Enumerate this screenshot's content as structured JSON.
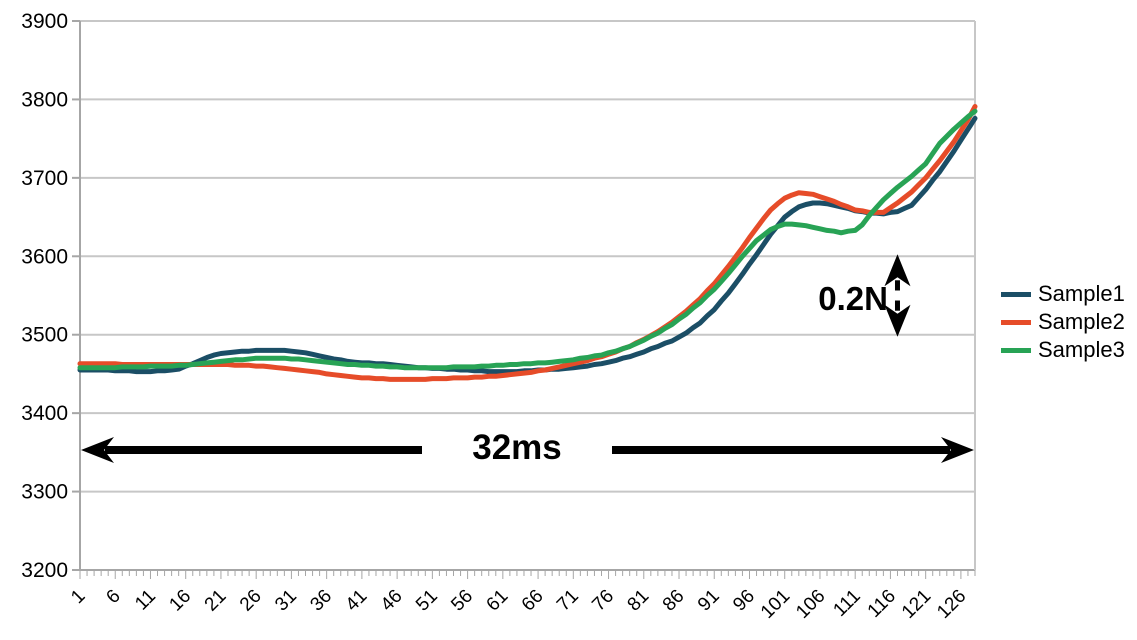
{
  "chart_data": {
    "type": "line",
    "title": "",
    "xlabel": "",
    "ylabel": "",
    "ylim": [
      3200,
      3900
    ],
    "y_ticks": [
      3200,
      3300,
      3400,
      3500,
      3600,
      3700,
      3800,
      3900
    ],
    "x_count": 128,
    "x_tick_labels": [
      "1",
      "6",
      "11",
      "16",
      "21",
      "26",
      "31",
      "36",
      "41",
      "46",
      "51",
      "56",
      "61",
      "66",
      "71",
      "76",
      "81",
      "86",
      "91",
      "96",
      "101",
      "106",
      "111",
      "116",
      "121",
      "126"
    ],
    "x_label_step": 5,
    "grid": "horizontal",
    "legend_position": "right",
    "colors": {
      "grid": "#c7c7c7",
      "axis": "#a6a6a6",
      "text": "#000000"
    },
    "series": [
      {
        "name": "Sample1",
        "color": "#1b4e66",
        "values": [
          3455,
          3455,
          3455,
          3455,
          3455,
          3454,
          3454,
          3454,
          3453,
          3453,
          3453,
          3454,
          3454,
          3455,
          3456,
          3460,
          3463,
          3467,
          3471,
          3474,
          3476,
          3477,
          3478,
          3479,
          3479,
          3480,
          3480,
          3480,
          3480,
          3480,
          3479,
          3478,
          3477,
          3475,
          3473,
          3471,
          3469,
          3468,
          3466,
          3465,
          3464,
          3464,
          3463,
          3463,
          3462,
          3461,
          3460,
          3459,
          3458,
          3458,
          3457,
          3457,
          3456,
          3456,
          3455,
          3455,
          3454,
          3454,
          3453,
          3453,
          3453,
          3453,
          3453,
          3454,
          3454,
          3455,
          3455,
          3456,
          3456,
          3457,
          3458,
          3459,
          3460,
          3462,
          3463,
          3465,
          3467,
          3470,
          3472,
          3475,
          3478,
          3482,
          3485,
          3489,
          3492,
          3497,
          3502,
          3509,
          3515,
          3524,
          3532,
          3543,
          3553,
          3565,
          3577,
          3590,
          3602,
          3615,
          3628,
          3639,
          3650,
          3657,
          3663,
          3666,
          3668,
          3668,
          3667,
          3665,
          3663,
          3661,
          3658,
          3657,
          3655,
          3655,
          3654,
          3656,
          3657,
          3661,
          3665,
          3675,
          3685,
          3697,
          3708,
          3721,
          3734,
          3748,
          3762,
          3776
        ]
      },
      {
        "name": "Sample2",
        "color": "#e64c29",
        "values": [
          3463,
          3463,
          3463,
          3463,
          3463,
          3463,
          3462,
          3462,
          3462,
          3462,
          3462,
          3462,
          3462,
          3462,
          3462,
          3462,
          3462,
          3462,
          3462,
          3462,
          3462,
          3462,
          3461,
          3461,
          3461,
          3460,
          3460,
          3459,
          3458,
          3457,
          3456,
          3455,
          3454,
          3453,
          3452,
          3450,
          3449,
          3448,
          3447,
          3446,
          3445,
          3445,
          3444,
          3444,
          3443,
          3443,
          3443,
          3443,
          3443,
          3443,
          3444,
          3444,
          3444,
          3445,
          3445,
          3445,
          3446,
          3446,
          3447,
          3447,
          3448,
          3449,
          3450,
          3451,
          3452,
          3454,
          3455,
          3457,
          3459,
          3461,
          3463,
          3465,
          3467,
          3470,
          3472,
          3475,
          3478,
          3482,
          3485,
          3490,
          3494,
          3499,
          3504,
          3510,
          3516,
          3523,
          3530,
          3538,
          3546,
          3556,
          3565,
          3576,
          3587,
          3599,
          3611,
          3624,
          3636,
          3648,
          3659,
          3667,
          3674,
          3678,
          3681,
          3680,
          3679,
          3676,
          3673,
          3670,
          3666,
          3663,
          3659,
          3658,
          3656,
          3656,
          3656,
          3662,
          3668,
          3675,
          3682,
          3691,
          3700,
          3711,
          3722,
          3734,
          3746,
          3760,
          3774,
          3791
        ]
      },
      {
        "name": "Sample3",
        "color": "#28a355",
        "values": [
          3458,
          3458,
          3458,
          3458,
          3458,
          3458,
          3459,
          3459,
          3459,
          3459,
          3460,
          3460,
          3460,
          3460,
          3461,
          3461,
          3462,
          3463,
          3464,
          3465,
          3466,
          3467,
          3468,
          3468,
          3469,
          3470,
          3470,
          3470,
          3470,
          3470,
          3469,
          3469,
          3468,
          3467,
          3466,
          3465,
          3464,
          3463,
          3462,
          3462,
          3461,
          3461,
          3460,
          3460,
          3459,
          3459,
          3458,
          3458,
          3458,
          3458,
          3458,
          3458,
          3458,
          3459,
          3459,
          3459,
          3459,
          3460,
          3460,
          3461,
          3461,
          3462,
          3462,
          3463,
          3463,
          3464,
          3464,
          3465,
          3466,
          3467,
          3468,
          3470,
          3471,
          3473,
          3474,
          3477,
          3479,
          3482,
          3485,
          3489,
          3493,
          3498,
          3502,
          3508,
          3513,
          3520,
          3526,
          3534,
          3541,
          3550,
          3558,
          3568,
          3578,
          3589,
          3600,
          3610,
          3620,
          3627,
          3634,
          3638,
          3641,
          3641,
          3640,
          3639,
          3637,
          3635,
          3633,
          3632,
          3630,
          3632,
          3633,
          3640,
          3652,
          3662,
          3672,
          3680,
          3688,
          3695,
          3702,
          3710,
          3718,
          3731,
          3744,
          3753,
          3762,
          3770,
          3778,
          3785
        ]
      }
    ],
    "annotations": [
      {
        "text": "32ms",
        "type": "horizontal-double-arrow",
        "y_value": 3353,
        "x_from_index": 1,
        "x_to_index": 128
      },
      {
        "text": "0.2N",
        "type": "vertical-double-arrow",
        "x_index": 117,
        "y_from_value": 3600,
        "y_to_value": 3500
      }
    ]
  }
}
